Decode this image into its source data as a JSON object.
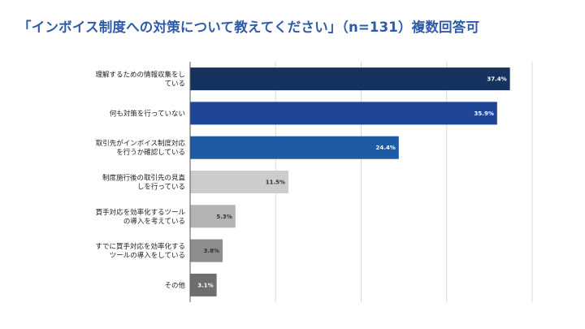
{
  "chart_data": {
    "type": "bar",
    "orientation": "horizontal",
    "title": "「インボイス制度への対策について教えてください」（n=131）複数回答可",
    "categories": [
      [
        "理解するための情報収集をし",
        "ている"
      ],
      [
        "何も対策を行っていない"
      ],
      [
        "取引先がインボイス制度対応",
        "を行うか確認している"
      ],
      [
        "制度施行後の取引先の見直",
        "しを行っている"
      ],
      [
        "買手対応を効率化するツール",
        "の導入を考えている"
      ],
      [
        "すでに買手対応を効率化する",
        "ツールの導入をしている"
      ],
      [
        "その他"
      ]
    ],
    "values": [
      37.4,
      35.9,
      24.4,
      11.5,
      5.3,
      3.8,
      3.1
    ],
    "value_labels": [
      "37.4%",
      "35.9%",
      "24.4%",
      "11.5%",
      "5.3%",
      "3.8%",
      "3.1%"
    ],
    "bar_colors": [
      "#16335f",
      "#1f4596",
      "#1f5aa5",
      "#cccccc",
      "#b3b3b3",
      "#8e8e8e",
      "#6e6e6e"
    ],
    "label_colors": [
      "#ffffff",
      "#ffffff",
      "#ffffff",
      "#333333",
      "#333333",
      "#333333",
      "#ffffff"
    ],
    "xlim": [
      0,
      40
    ],
    "grid": true,
    "xlabel": "",
    "ylabel": ""
  }
}
